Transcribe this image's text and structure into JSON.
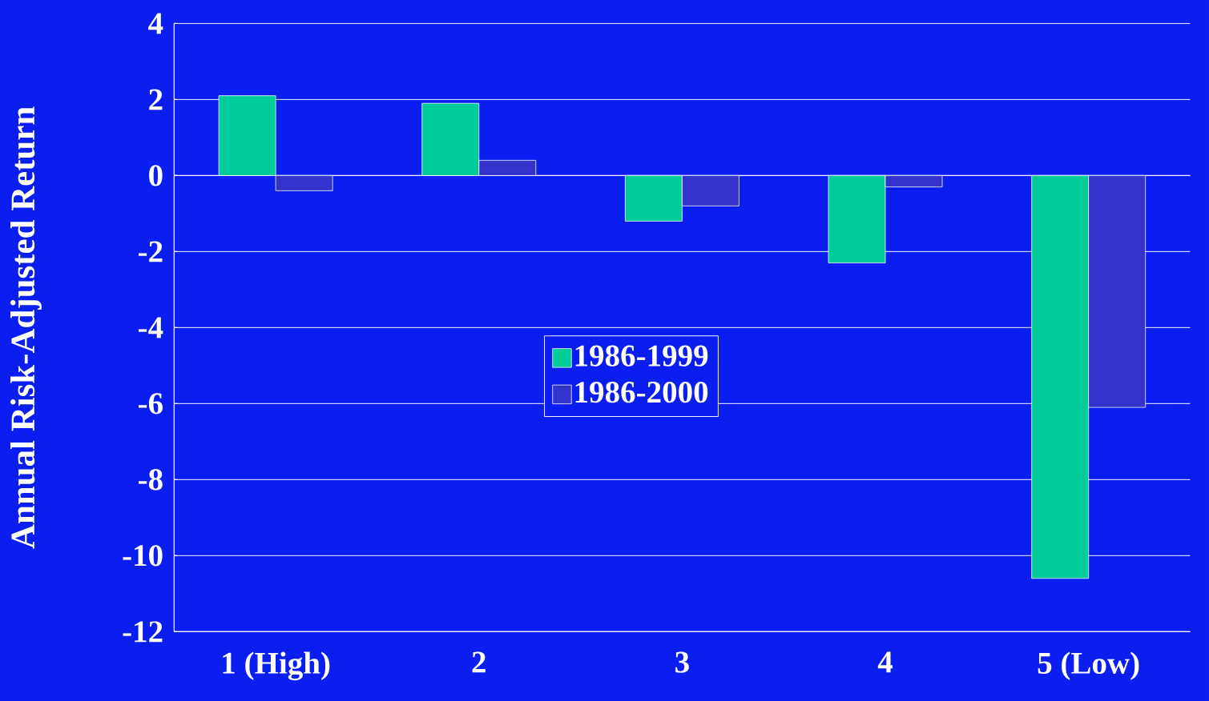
{
  "chart_data": {
    "type": "bar",
    "ylabel": "Annual Risk-Adjusted Return",
    "categories": [
      "1 (High)",
      "2",
      "3",
      "4",
      "5 (Low)"
    ],
    "series": [
      {
        "name": "1986-1999",
        "color": "#00cc99",
        "values": [
          2.1,
          1.9,
          -1.2,
          -2.3,
          -10.6
        ]
      },
      {
        "name": "1986-2000",
        "color": "#3333cc",
        "values": [
          -0.4,
          0.4,
          -0.8,
          -0.3,
          -6.1
        ]
      }
    ],
    "ylim": [
      -12,
      4
    ],
    "yticks": [
      -12,
      -10,
      -8,
      -6,
      -4,
      -2,
      0,
      2,
      4
    ],
    "grid": "y",
    "legend": "center"
  }
}
